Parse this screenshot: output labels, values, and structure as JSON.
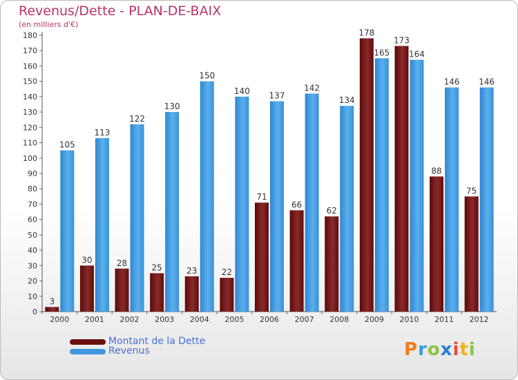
{
  "chart_data": {
    "type": "bar",
    "title": "Revenus/Dette - PLAN-DE-BAIX",
    "subtitle": "(en milliers d'€)",
    "categories": [
      "2000",
      "2001",
      "2002",
      "2003",
      "2004",
      "2005",
      "2006",
      "2007",
      "2008",
      "2009",
      "2010",
      "2011",
      "2012"
    ],
    "series": [
      {
        "name": "Montant de la Dette",
        "color": "#7a1c1c",
        "values": [
          3,
          30,
          28,
          25,
          23,
          22,
          71,
          66,
          62,
          178,
          173,
          88,
          75
        ]
      },
      {
        "name": "Revenus",
        "color": "#3f97dc",
        "values": [
          105,
          113,
          122,
          130,
          150,
          140,
          137,
          142,
          134,
          165,
          164,
          146,
          146
        ]
      }
    ],
    "ylim": [
      0,
      180
    ],
    "ytick_step": 10,
    "grid": false,
    "legend_position": "bottom-left"
  },
  "logo": {
    "text": "Proxiti",
    "letters": [
      "P",
      "r",
      "o",
      "x",
      "i",
      "t",
      "i"
    ]
  }
}
